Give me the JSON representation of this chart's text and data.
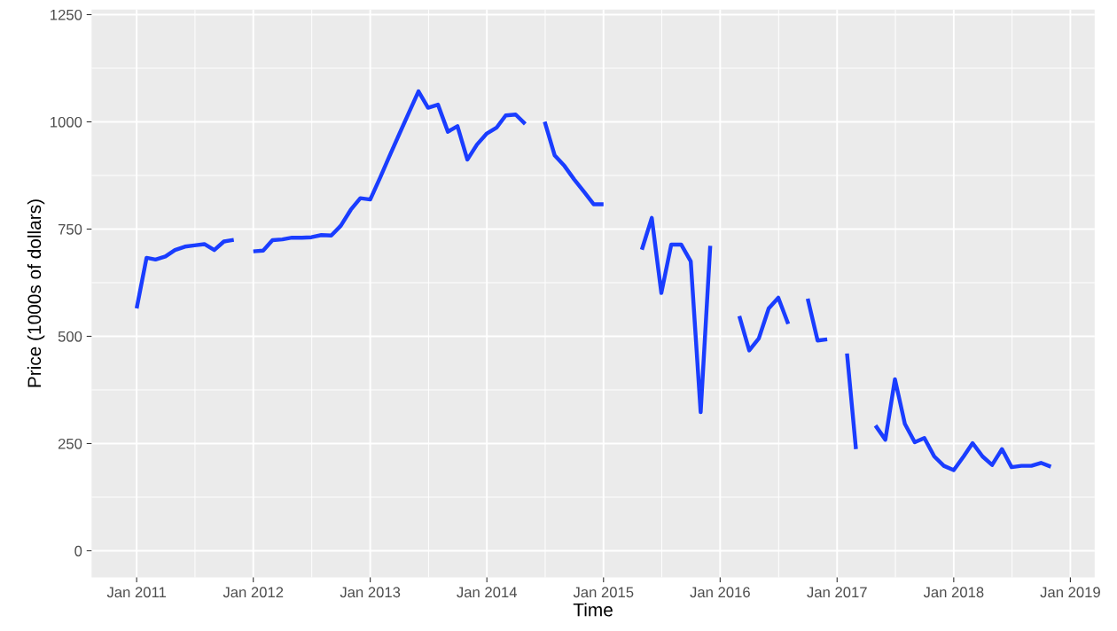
{
  "chart_data": {
    "type": "line",
    "xlabel": "Time",
    "ylabel": "Price (1000s of dollars)",
    "x": [
      "2011-01",
      "2011-02",
      "2011-03",
      "2011-04",
      "2011-05",
      "2011-06",
      "2011-07",
      "2011-08",
      "2011-09",
      "2011-10",
      "2011-11",
      "2011-12",
      "2012-01",
      "2012-02",
      "2012-03",
      "2012-04",
      "2012-05",
      "2012-06",
      "2012-07",
      "2012-08",
      "2012-09",
      "2012-10",
      "2012-11",
      "2012-12",
      "2013-01",
      "2013-02",
      "2013-03",
      "2013-04",
      "2013-05",
      "2013-06",
      "2013-07",
      "2013-08",
      "2013-09",
      "2013-10",
      "2013-11",
      "2013-12",
      "2014-01",
      "2014-02",
      "2014-03",
      "2014-04",
      "2014-05",
      "2014-06",
      "2014-07",
      "2014-08",
      "2014-09",
      "2014-10",
      "2014-11",
      "2014-12",
      "2015-01",
      "2015-02",
      "2015-03",
      "2015-04",
      "2015-05",
      "2015-06",
      "2015-07",
      "2015-08",
      "2015-09",
      "2015-10",
      "2015-11",
      "2015-12",
      "2016-01",
      "2016-02",
      "2016-03",
      "2016-04",
      "2016-05",
      "2016-06",
      "2016-07",
      "2016-08",
      "2016-09",
      "2016-10",
      "2016-11",
      "2016-12",
      "2017-01",
      "2017-02",
      "2017-03",
      "2017-04",
      "2017-05",
      "2017-06",
      "2017-07",
      "2017-08",
      "2017-09",
      "2017-10",
      "2017-11",
      "2017-12",
      "2018-01",
      "2018-02",
      "2018-03",
      "2018-04",
      "2018-05",
      "2018-06",
      "2018-07",
      "2018-08",
      "2018-09",
      "2018-10",
      "2018-11"
    ],
    "series": [
      {
        "color": "#1a3dff",
        "values": [
          565,
          683,
          679,
          686,
          701,
          709,
          712,
          715,
          701,
          721,
          725,
          null,
          698,
          700,
          724,
          726,
          730,
          730,
          731,
          736,
          735,
          758,
          795,
          822,
          819,
          870,
          918,
          970,
          1020,
          1071,
          1033,
          1040,
          977,
          990,
          912,
          947,
          973,
          987,
          1015,
          1017,
          995,
          null,
          1000,
          922,
          897,
          866,
          837,
          808,
          808,
          null,
          null,
          null,
          702,
          776,
          601,
          714,
          714,
          675,
          323,
          711,
          null,
          null,
          547,
          467,
          495,
          565,
          590,
          529,
          null,
          588,
          490,
          493,
          null,
          460,
          237,
          null,
          292,
          259,
          400,
          296,
          253,
          263,
          220,
          198,
          188,
          220,
          251,
          220,
          200,
          237,
          195,
          198,
          198,
          205,
          196
        ]
      }
    ],
    "xlim": [
      "2010-08-13",
      "2019-03-18"
    ],
    "xticks": [
      {
        "value": "2011-01-01",
        "label": "Jan 2011"
      },
      {
        "value": "2012-01-01",
        "label": "Jan 2012"
      },
      {
        "value": "2013-01-01",
        "label": "Jan 2013"
      },
      {
        "value": "2014-01-01",
        "label": "Jan 2014"
      },
      {
        "value": "2015-01-01",
        "label": "Jan 2015"
      },
      {
        "value": "2016-01-01",
        "label": "Jan 2016"
      },
      {
        "value": "2017-01-01",
        "label": "Jan 2017"
      },
      {
        "value": "2018-01-01",
        "label": "Jan 2018"
      },
      {
        "value": "2019-01-01",
        "label": "Jan 2019"
      }
    ],
    "ylim": [
      -62,
      1262
    ],
    "yticks": [
      0,
      250,
      500,
      750,
      1000,
      1250
    ],
    "grid": true,
    "line_style": "solid",
    "marker": "none"
  }
}
